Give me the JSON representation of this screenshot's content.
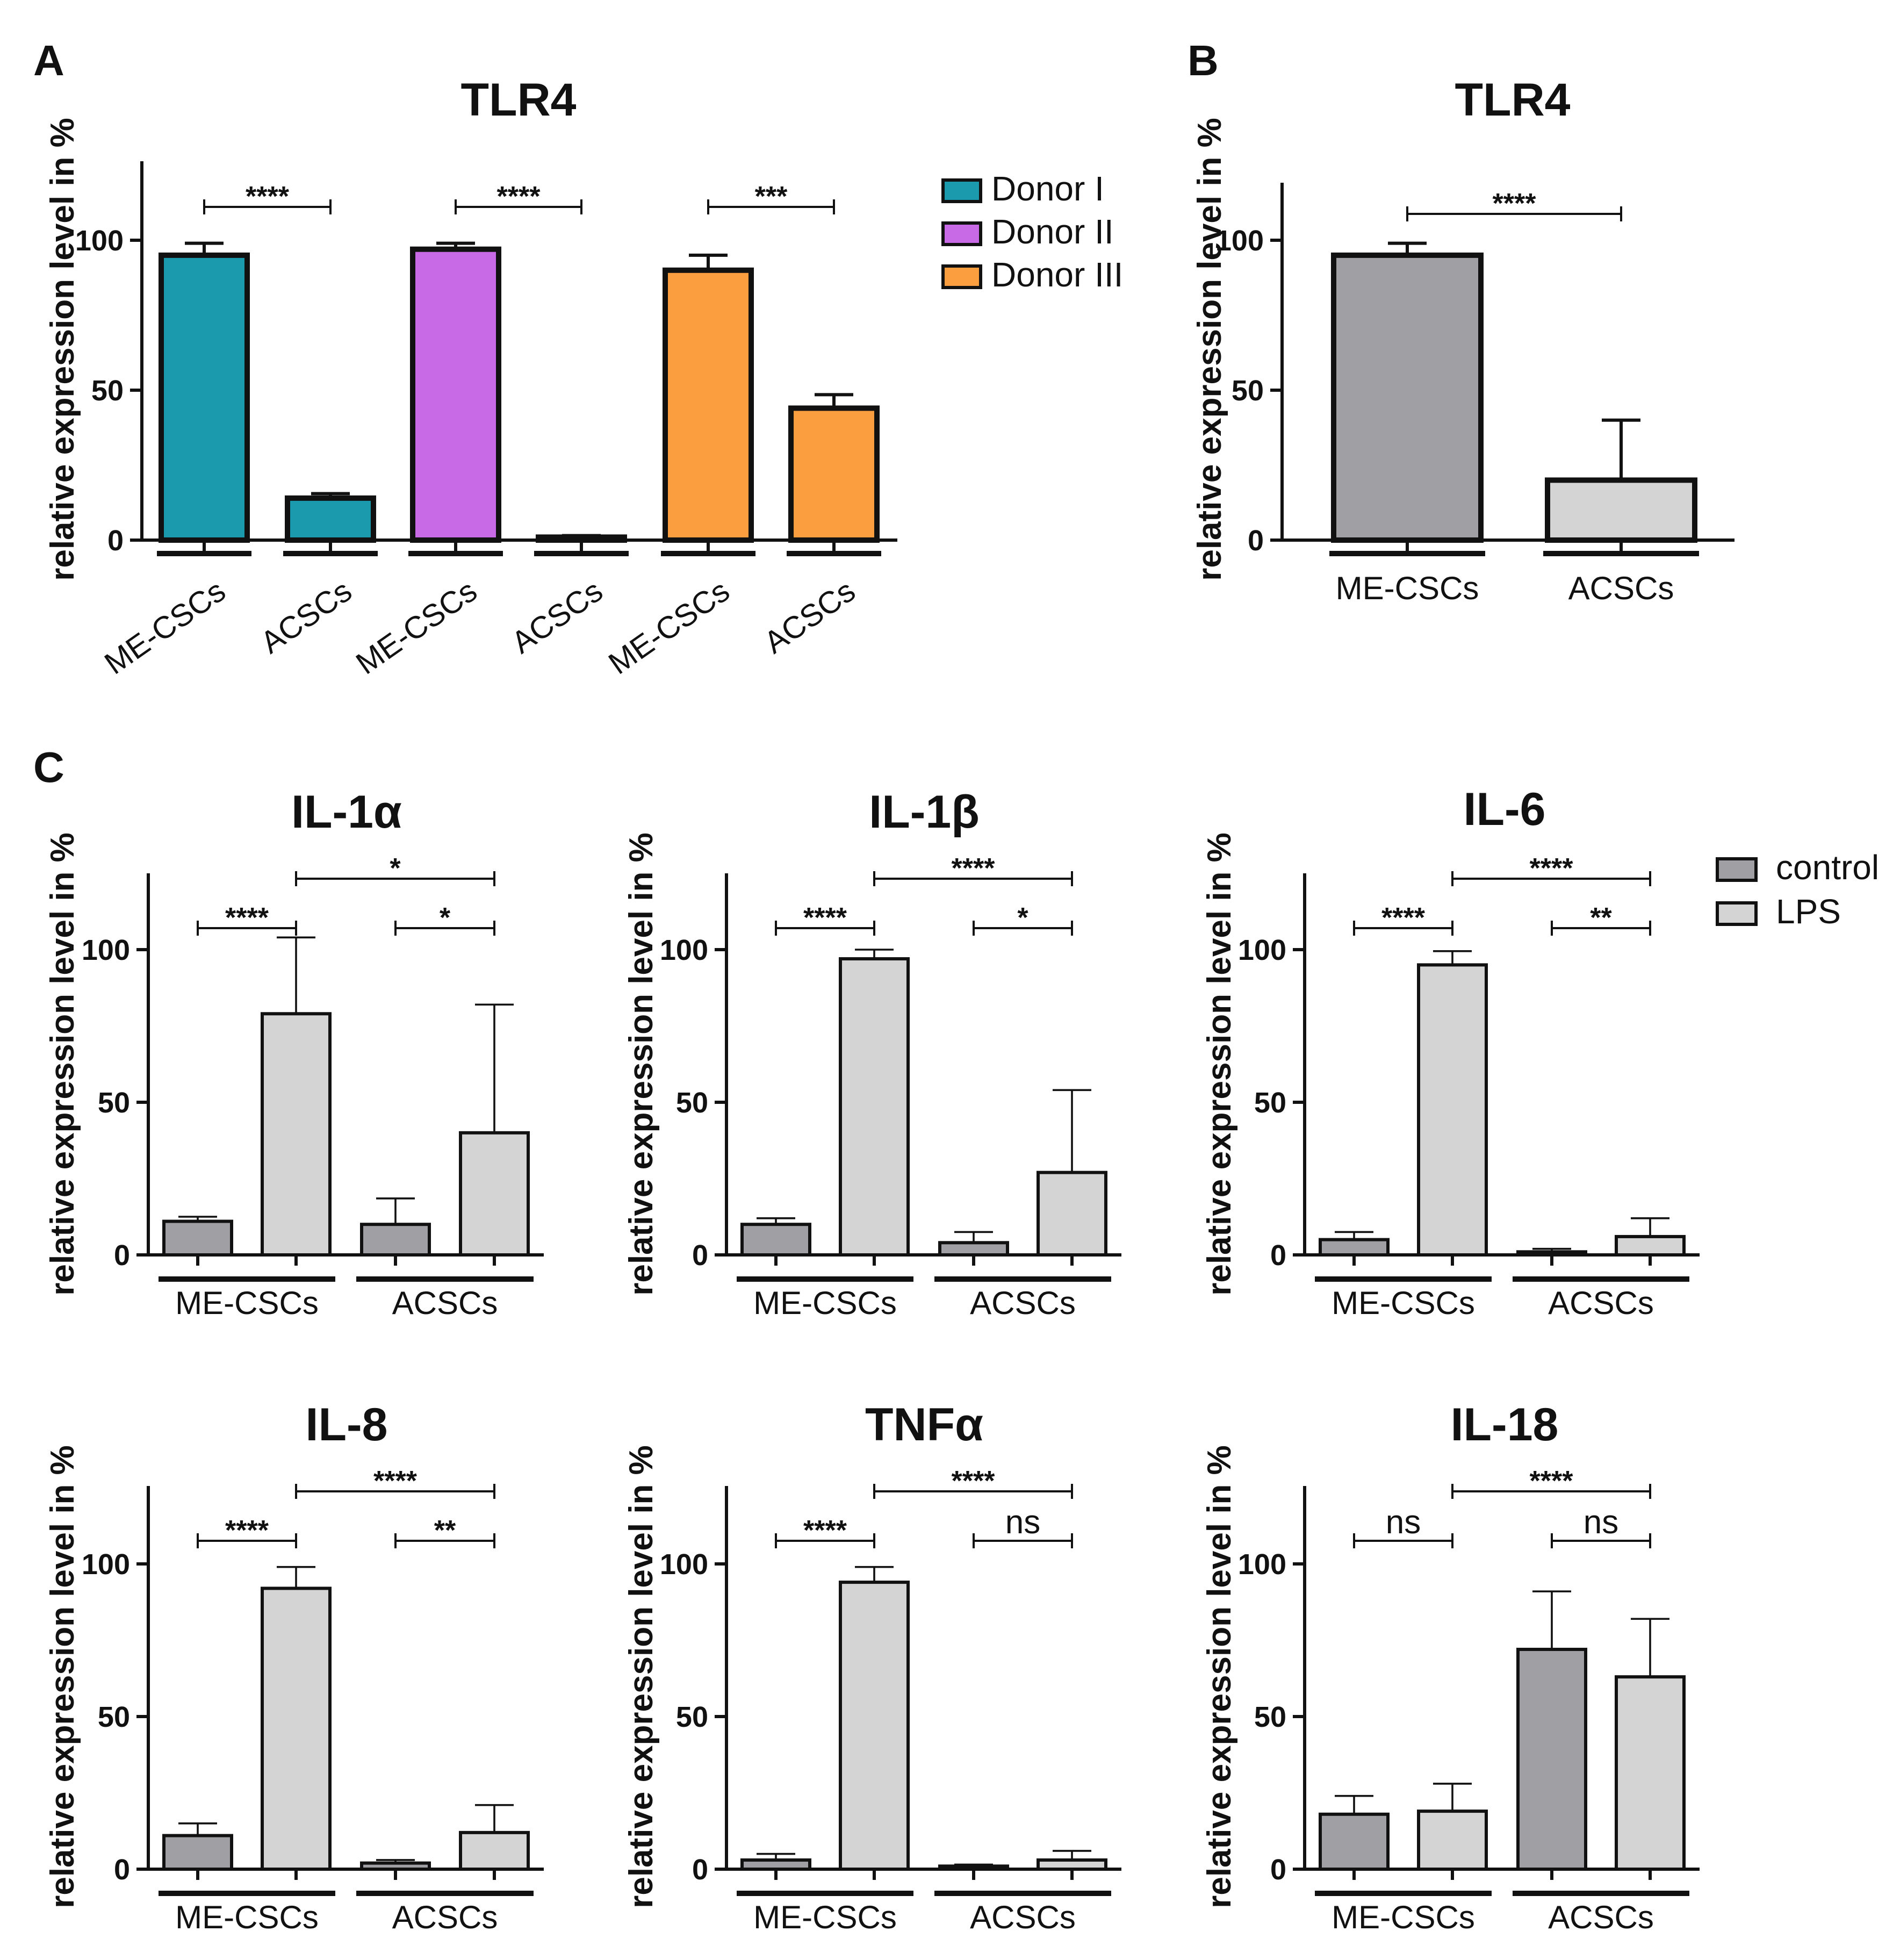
{
  "panels": {
    "A": "A",
    "B": "B",
    "C": "C"
  },
  "chart_data": [
    {
      "id": "A",
      "type": "bar",
      "title": "TLR4",
      "ylabel": "relative expression level in %",
      "ylim": [
        0,
        125
      ],
      "yticks": [
        0,
        50,
        100
      ],
      "categories": [
        "ME-CSCs",
        "ACSCs",
        "ME-CSCs",
        "ACSCs",
        "ME-CSCs",
        "ACSCs"
      ],
      "values": [
        95,
        14,
        97,
        1,
        90,
        44
      ],
      "errors": [
        4,
        1.5,
        2,
        0.5,
        5,
        4.5
      ],
      "bar_colors": [
        "#1a9aac",
        "#1a9aac",
        "#c86ae6",
        "#c86ae6",
        "#fb9e3f",
        "#fb9e3f"
      ],
      "legend": [
        {
          "label": "Donor I",
          "color": "#1a9aac"
        },
        {
          "label": "Donor II",
          "color": "#c86ae6"
        },
        {
          "label": "Donor III",
          "color": "#fb9e3f"
        }
      ],
      "comparisons": [
        {
          "from": 0,
          "to": 1,
          "label": "****"
        },
        {
          "from": 2,
          "to": 3,
          "label": "****"
        },
        {
          "from": 4,
          "to": 5,
          "label": "***"
        }
      ]
    },
    {
      "id": "B",
      "type": "bar",
      "title": "TLR4",
      "ylabel": "relative expression level in %",
      "ylim": [
        0,
        125
      ],
      "yticks": [
        0,
        50,
        100
      ],
      "categories": [
        "ME-CSCs",
        "ACSCs"
      ],
      "values": [
        95,
        20
      ],
      "errors": [
        4,
        20
      ],
      "bar_colors": [
        "#a0a0a4",
        "#d4d4d4"
      ],
      "comparisons": [
        {
          "from": 0,
          "to": 1,
          "label": "****"
        }
      ]
    },
    {
      "id": "IL-1a",
      "type": "bar",
      "title": "IL-1α",
      "ylabel": "relative expression level in %",
      "ylim": [
        0,
        125
      ],
      "yticks": [
        0,
        50,
        100
      ],
      "groups": [
        "ME-CSCs",
        "ACSCs"
      ],
      "series": [
        {
          "name": "control",
          "values": [
            11,
            10
          ],
          "errors": [
            1.5,
            8.5
          ]
        },
        {
          "name": "LPS",
          "values": [
            79,
            40
          ],
          "errors": [
            25,
            42
          ]
        }
      ],
      "comparisons": [
        {
          "from": 0,
          "to": 1,
          "label": "****"
        },
        {
          "from": 1,
          "to": 3,
          "label": "*"
        },
        {
          "from": 2,
          "to": 3,
          "label": "*"
        }
      ]
    },
    {
      "id": "IL-1b",
      "type": "bar",
      "title": "IL-1β",
      "ylabel": "relative expression level in %",
      "ylim": [
        0,
        125
      ],
      "yticks": [
        0,
        50,
        100
      ],
      "groups": [
        "ME-CSCs",
        "ACSCs"
      ],
      "series": [
        {
          "name": "control",
          "values": [
            10,
            4
          ],
          "errors": [
            2,
            3.5
          ]
        },
        {
          "name": "LPS",
          "values": [
            97,
            27
          ],
          "errors": [
            3,
            27
          ]
        }
      ],
      "comparisons": [
        {
          "from": 0,
          "to": 1,
          "label": "****"
        },
        {
          "from": 1,
          "to": 3,
          "label": "****"
        },
        {
          "from": 2,
          "to": 3,
          "label": "*"
        }
      ]
    },
    {
      "id": "IL-6",
      "type": "bar",
      "title": "IL-6",
      "ylabel": "relative expression level in %",
      "ylim": [
        0,
        125
      ],
      "yticks": [
        0,
        50,
        100
      ],
      "groups": [
        "ME-CSCs",
        "ACSCs"
      ],
      "series": [
        {
          "name": "control",
          "values": [
            5,
            1
          ],
          "errors": [
            2.5,
            1
          ]
        },
        {
          "name": "LPS",
          "values": [
            95,
            6
          ],
          "errors": [
            4.5,
            6
          ]
        }
      ],
      "comparisons": [
        {
          "from": 0,
          "to": 1,
          "label": "****"
        },
        {
          "from": 1,
          "to": 3,
          "label": "****"
        },
        {
          "from": 2,
          "to": 3,
          "label": "**"
        }
      ]
    },
    {
      "id": "IL-8",
      "type": "bar",
      "title": "IL-8",
      "ylabel": "relative expression level in %",
      "ylim": [
        0,
        125
      ],
      "yticks": [
        0,
        50,
        100
      ],
      "groups": [
        "ME-CSCs",
        "ACSCs"
      ],
      "series": [
        {
          "name": "control",
          "values": [
            11,
            2
          ],
          "errors": [
            4,
            1
          ]
        },
        {
          "name": "LPS",
          "values": [
            92,
            12
          ],
          "errors": [
            7,
            9
          ]
        }
      ],
      "comparisons": [
        {
          "from": 0,
          "to": 1,
          "label": "****"
        },
        {
          "from": 1,
          "to": 3,
          "label": "****"
        },
        {
          "from": 2,
          "to": 3,
          "label": "**"
        }
      ]
    },
    {
      "id": "TNFa",
      "type": "bar",
      "title": "TNFα",
      "ylabel": "relative expression level in %",
      "ylim": [
        0,
        125
      ],
      "yticks": [
        0,
        50,
        100
      ],
      "groups": [
        "ME-CSCs",
        "ACSCs"
      ],
      "series": [
        {
          "name": "control",
          "values": [
            3,
            1
          ],
          "errors": [
            2,
            0.5
          ]
        },
        {
          "name": "LPS",
          "values": [
            94,
            3
          ],
          "errors": [
            5,
            3
          ]
        }
      ],
      "comparisons": [
        {
          "from": 0,
          "to": 1,
          "label": "****"
        },
        {
          "from": 1,
          "to": 3,
          "label": "****"
        },
        {
          "from": 2,
          "to": 3,
          "label": "ns"
        }
      ]
    },
    {
      "id": "IL-18",
      "type": "bar",
      "title": "IL-18",
      "ylabel": "relative expression level in %",
      "ylim": [
        0,
        125
      ],
      "yticks": [
        0,
        50,
        100
      ],
      "groups": [
        "ME-CSCs",
        "ACSCs"
      ],
      "series": [
        {
          "name": "control",
          "values": [
            18,
            72
          ],
          "errors": [
            6,
            19
          ]
        },
        {
          "name": "LPS",
          "values": [
            19,
            63
          ],
          "errors": [
            9,
            19
          ]
        }
      ],
      "comparisons": [
        {
          "from": 0,
          "to": 1,
          "label": "ns"
        },
        {
          "from": 1,
          "to": 3,
          "label": "****"
        },
        {
          "from": 2,
          "to": 3,
          "label": "ns"
        }
      ]
    }
  ],
  "legend_c": [
    {
      "label": "control",
      "color": "#a0a0a4"
    },
    {
      "label": "LPS",
      "color": "#d4d4d4"
    }
  ]
}
